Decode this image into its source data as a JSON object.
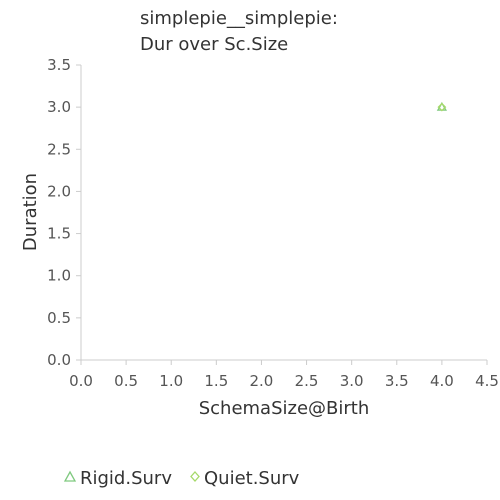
{
  "chart_data": {
    "type": "scatter",
    "title_lines": [
      "simplepie__simplepie:",
      "Dur over Sc.Size"
    ],
    "xlabel": "SchemaSize@Birth",
    "ylabel": "Duration",
    "xlim": [
      0.0,
      4.5
    ],
    "ylim": [
      0.0,
      3.5
    ],
    "xticks": [
      "0.0",
      "0.5",
      "1.0",
      "1.5",
      "2.0",
      "2.5",
      "3.0",
      "3.5",
      "4.0",
      "4.5"
    ],
    "yticks": [
      "0.0",
      "0.5",
      "1.0",
      "1.5",
      "2.0",
      "2.5",
      "3.0",
      "3.5"
    ],
    "grid": false,
    "legend_position": "bottom",
    "series": [
      {
        "name": "Rigid.Surv",
        "marker": "triangle",
        "color": "#7fc97f",
        "points": [
          {
            "x": 4.0,
            "y": 3.0
          }
        ]
      },
      {
        "name": "Quiet.Surv",
        "marker": "diamond",
        "color": "#a6d96a",
        "points": [
          {
            "x": 4.0,
            "y": 3.0
          }
        ]
      }
    ]
  }
}
